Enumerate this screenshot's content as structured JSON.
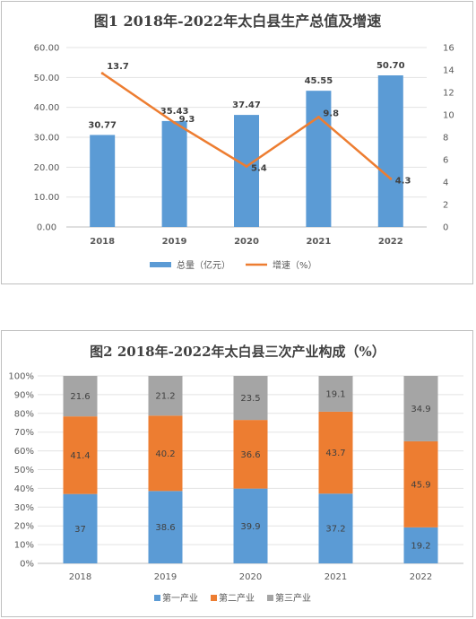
{
  "chart_data": [
    {
      "type": "bar",
      "title": "图1  2018年-2022年太白县生产总值及增速",
      "categories": [
        "2018",
        "2019",
        "2020",
        "2021",
        "2022"
      ],
      "series": [
        {
          "name": "总量（亿元）",
          "type": "bar",
          "axis": "left",
          "values": [
            30.77,
            35.43,
            37.47,
            45.55,
            50.7
          ],
          "labels": [
            "30.77",
            "35.43",
            "37.47",
            "45.55",
            "50.70"
          ],
          "color": "#5b9bd5"
        },
        {
          "name": "增速（%）",
          "type": "line",
          "axis": "right",
          "values": [
            13.7,
            9.3,
            5.4,
            9.8,
            4.3
          ],
          "labels": [
            "13.7",
            "9.3",
            "5.4",
            "9.8",
            "4.3"
          ],
          "color": "#ed7d31"
        }
      ],
      "yleft": {
        "min": 0,
        "max": 60,
        "ticks": [
          "0.00",
          "10.00",
          "20.00",
          "30.00",
          "40.00",
          "50.00",
          "60.00"
        ]
      },
      "yright": {
        "min": 0,
        "max": 16,
        "ticks": [
          "0",
          "2",
          "4",
          "6",
          "8",
          "10",
          "12",
          "14",
          "16"
        ]
      },
      "grid": true,
      "legend": "bottom"
    },
    {
      "type": "bar",
      "stacked": true,
      "title": "图2  2018年-2022年太白县三次产业构成（%）",
      "categories": [
        "2018",
        "2019",
        "2020",
        "2021",
        "2022"
      ],
      "series": [
        {
          "name": "第一产业",
          "values": [
            37,
            38.6,
            39.9,
            37.2,
            19.2
          ],
          "labels": [
            "37",
            "38.6",
            "39.9",
            "37.2",
            "19.2"
          ],
          "color": "#5b9bd5"
        },
        {
          "name": "第二产业",
          "values": [
            41.4,
            40.2,
            36.6,
            43.7,
            45.9
          ],
          "labels": [
            "41.4",
            "40.2",
            "36.6",
            "43.7",
            "45.9"
          ],
          "color": "#ed7d31"
        },
        {
          "name": "第三产业",
          "values": [
            21.6,
            21.2,
            23.5,
            19.1,
            34.9
          ],
          "labels": [
            "21.6",
            "21.2",
            "23.5",
            "19.1",
            "34.9"
          ],
          "color": "#a5a5a5"
        }
      ],
      "yaxis": {
        "min": 0,
        "max": 100,
        "ticks": [
          "0%",
          "10%",
          "20%",
          "30%",
          "40%",
          "50%",
          "60%",
          "70%",
          "80%",
          "90%",
          "100%"
        ]
      },
      "grid": true,
      "legend": "bottom"
    }
  ]
}
